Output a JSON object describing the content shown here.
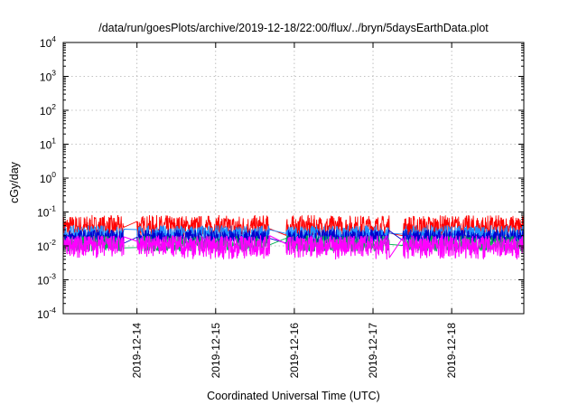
{
  "chart_data": {
    "type": "area",
    "title": "/data/run/goesPlots/archive/2019-12-18/22:00/flux/../bryn/5daysEarthData.plot",
    "xlabel": "Coordinated Universal Time (UTC)",
    "ylabel": "cGy/day",
    "y_scale": "log",
    "ylim": [
      0.0001,
      10000
    ],
    "xlim": [
      "2019-12-13 01:30",
      "2019-12-18 22:00"
    ],
    "grid": true,
    "y_ticks": [
      {
        "base": "10",
        "exp": "-4",
        "value": 0.0001
      },
      {
        "base": "10",
        "exp": "-3",
        "value": 0.001
      },
      {
        "base": "10",
        "exp": "-2",
        "value": 0.01
      },
      {
        "base": "10",
        "exp": "-1",
        "value": 0.1
      },
      {
        "base": "10",
        "exp": "0",
        "value": 1
      },
      {
        "base": "10",
        "exp": "1",
        "value": 10
      },
      {
        "base": "10",
        "exp": "2",
        "value": 100
      },
      {
        "base": "10",
        "exp": "3",
        "value": 1000
      },
      {
        "base": "10",
        "exp": "4",
        "value": 10000
      }
    ],
    "x_ticks": [
      {
        "label": "2019-12-14",
        "value": "2019-12-14 00:00"
      },
      {
        "label": "2019-12-15",
        "value": "2019-12-15 00:00"
      },
      {
        "label": "2019-12-16",
        "value": "2019-12-16 00:00"
      },
      {
        "label": "2019-12-17",
        "value": "2019-12-17 00:00"
      },
      {
        "label": "2019-12-18",
        "value": "2019-12-18 00:00"
      }
    ],
    "data_gaps": [
      [
        "2019-12-13 20:00",
        "2019-12-14 00:00"
      ],
      [
        "2019-12-15 16:30",
        "2019-12-15 21:30"
      ],
      [
        "2019-12-17 05:00",
        "2019-12-17 09:00"
      ]
    ],
    "series": [
      {
        "color": "#ff0000",
        "typical_min": 0.02,
        "typical_max": 0.08
      },
      {
        "color": "#1e90ff",
        "typical_min": 0.015,
        "typical_max": 0.04
      },
      {
        "color": "#0000cd",
        "typical_min": 0.012,
        "typical_max": 0.03
      },
      {
        "color": "#00b050",
        "typical_min": 0.007,
        "typical_max": 0.02
      },
      {
        "color": "#ff00ff",
        "typical_min": 0.004,
        "typical_max": 0.02
      }
    ]
  }
}
